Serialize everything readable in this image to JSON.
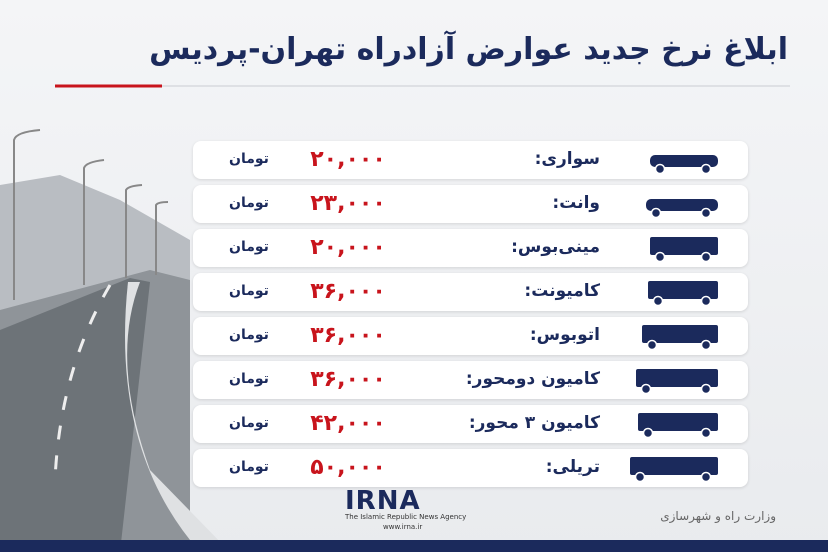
{
  "header": {
    "title": "ابلاغ نرخ جدید عوارض آزادراه تهران-پردیس"
  },
  "table": {
    "rows": [
      {
        "vehicle": "سواری:",
        "price": "۲۰,۰۰۰",
        "unit": "تومان"
      },
      {
        "vehicle": "وانت:",
        "price": "۲۳,۰۰۰",
        "unit": "تومان"
      },
      {
        "vehicle": "مینی‌بوس:",
        "price": "۲۰,۰۰۰",
        "unit": "تومان"
      },
      {
        "vehicle": "کامیونت:",
        "price": "۳۶,۰۰۰",
        "unit": "تومان"
      },
      {
        "vehicle": "اتوبوس:",
        "price": "۳۶,۰۰۰",
        "unit": "تومان"
      },
      {
        "vehicle": "کامیون دومحور:",
        "price": "۳۶,۰۰۰",
        "unit": "تومان"
      },
      {
        "vehicle": "کامیون ۳ محور:",
        "price": "۴۲,۰۰۰",
        "unit": "تومان"
      },
      {
        "vehicle": "تریلی:",
        "price": "۵۰,۰۰۰",
        "unit": "تومان"
      }
    ]
  },
  "footer": {
    "logo": "IRNA",
    "agency": "The Islamic Republic News Agency",
    "website": "www.irna.ir",
    "source": "وزارت راه و شهرسازی"
  }
}
